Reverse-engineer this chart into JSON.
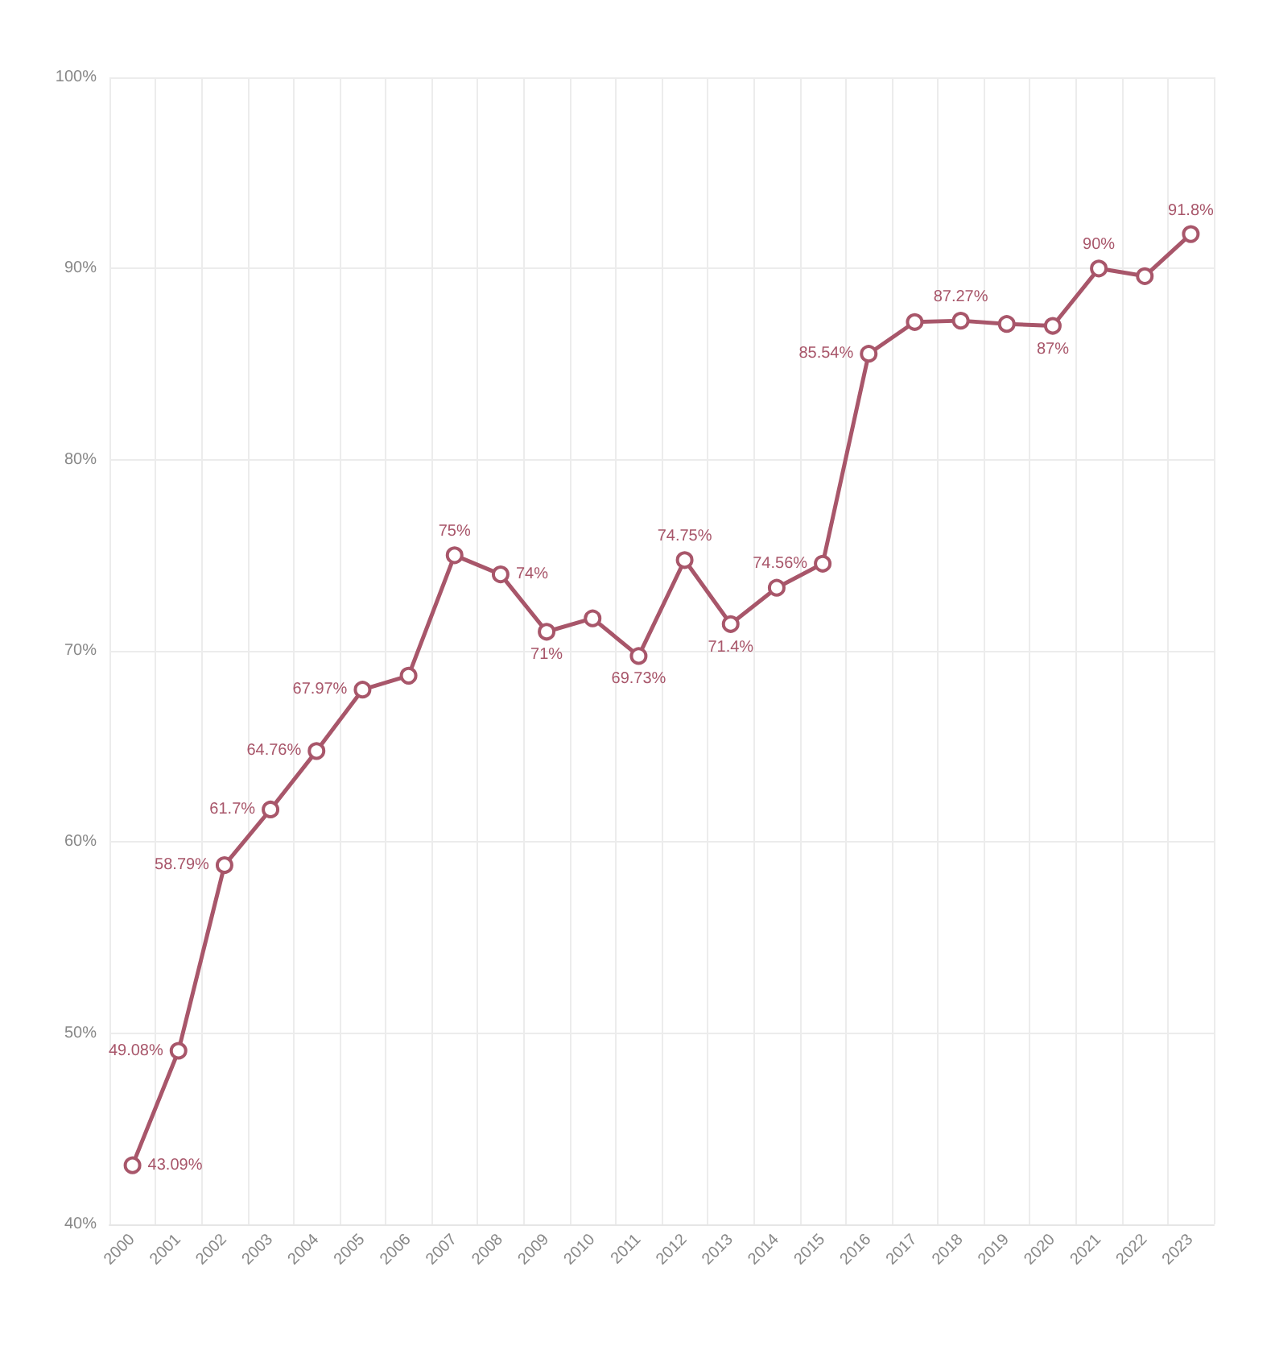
{
  "chart_data": {
    "type": "line",
    "categories": [
      "2000",
      "2001",
      "2002",
      "2003",
      "2004",
      "2005",
      "2006",
      "2007",
      "2008",
      "2009",
      "2010",
      "2011",
      "2012",
      "2013",
      "2014",
      "2015",
      "2016",
      "2017",
      "2018",
      "2019",
      "2020",
      "2021",
      "2022",
      "2023"
    ],
    "series": [
      {
        "color": "#a8566a",
        "values": [
          43.09,
          49.08,
          58.79,
          61.7,
          64.76,
          67.97,
          68.7,
          75,
          74,
          71,
          71.7,
          69.73,
          74.75,
          71.4,
          73.3,
          74.56,
          85.54,
          87.2,
          87.27,
          87.1,
          87,
          90,
          89.6,
          91.8
        ],
        "value_labels": [
          "43.09%",
          "49.08%",
          "58.79%",
          "61.7%",
          "64.76%",
          "67.97%",
          null,
          "75%",
          "74%",
          "71%",
          null,
          "69.73%",
          "74.75%",
          "71.4%",
          null,
          "74.56%",
          "85.54%",
          null,
          "87.27%",
          null,
          "87%",
          "90%",
          null,
          "91.8%"
        ]
      }
    ],
    "ylim": [
      40,
      100
    ],
    "yticks": [
      {
        "value": 40,
        "label": "40%"
      },
      {
        "value": 50,
        "label": "50%"
      },
      {
        "value": 60,
        "label": "60%"
      },
      {
        "value": 70,
        "label": "70%"
      },
      {
        "value": 80,
        "label": "80%"
      },
      {
        "value": 90,
        "label": "90%"
      },
      {
        "value": 100,
        "label": "100%"
      }
    ],
    "grid": true,
    "marker": "circle",
    "line_style": "solid"
  }
}
